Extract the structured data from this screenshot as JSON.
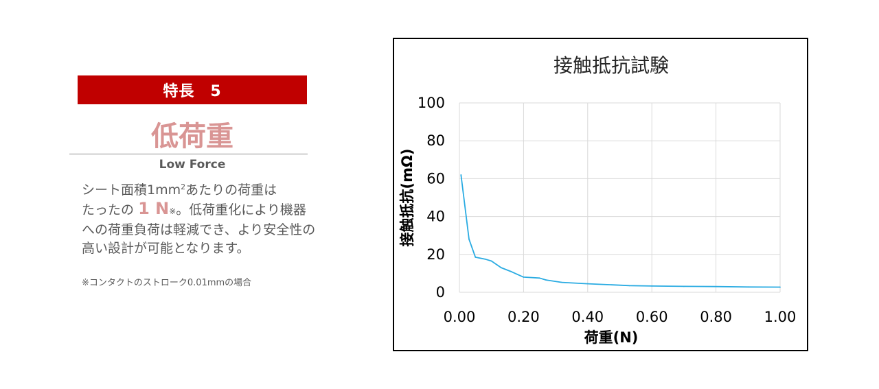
{
  "feature": {
    "badge": "特長　5",
    "title": "低荷重",
    "subtitle": "Low Force",
    "desc_1": "シート面積1mm",
    "desc_sup": "2",
    "desc_2": "あたりの荷重は",
    "desc_3": "たったの",
    "desc_highlight": "1 N",
    "desc_mark": "※",
    "desc_4": "。低荷重化により機器への荷重負荷は軽減でき、より安全性の高い設計が可能となります。",
    "note": "※コンタクトのストローク0.01mmの場合"
  },
  "colors": {
    "badge_bg": "#c00000",
    "accent": "#d99594",
    "series_line": "#29abe2",
    "grid": "#d9d9d9"
  },
  "chart_data": {
    "type": "line",
    "title": "接触抵抗試験",
    "xlabel": "荷重(N)",
    "ylabel": "接触抵抗(mΩ)",
    "xlim": [
      0,
      1
    ],
    "ylim": [
      0,
      100
    ],
    "x_ticks": [
      "0.00",
      "0.20",
      "0.40",
      "0.60",
      "0.80",
      "1.00"
    ],
    "y_ticks": [
      "0",
      "20",
      "40",
      "60",
      "80",
      "100"
    ],
    "grid": true,
    "series": [
      {
        "x": [
          0.005,
          0.03,
          0.05,
          0.08,
          0.1,
          0.13,
          0.16,
          0.18,
          0.2,
          0.25,
          0.27,
          0.32,
          0.4,
          0.53,
          0.6,
          0.7,
          0.8,
          0.9,
          1.0
        ],
        "y": [
          62,
          28,
          18.5,
          17.5,
          16.5,
          13,
          11,
          9.5,
          8,
          7.5,
          6.5,
          5.2,
          4.5,
          3.5,
          3.3,
          3.1,
          3.0,
          2.8,
          2.7
        ]
      }
    ]
  }
}
